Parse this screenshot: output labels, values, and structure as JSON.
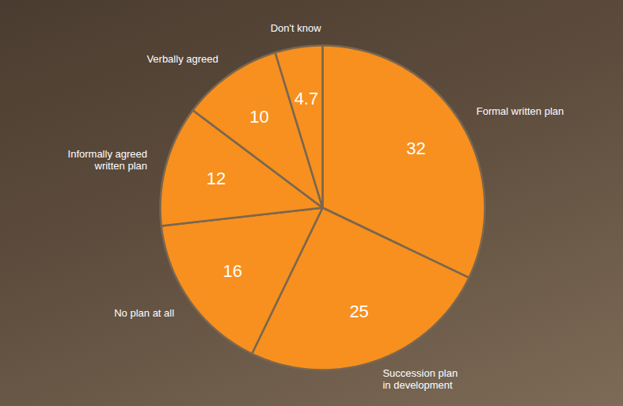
{
  "chart_data": {
    "type": "pie",
    "categories": [
      "Formal written plan",
      "Succession plan in development",
      "No plan at all",
      "Informally agreed written plan",
      "Verbally agreed",
      "Don't know"
    ],
    "values": [
      32,
      25,
      16,
      12,
      10,
      4.7
    ],
    "color": "#f7901e",
    "data_labels": true
  }
}
